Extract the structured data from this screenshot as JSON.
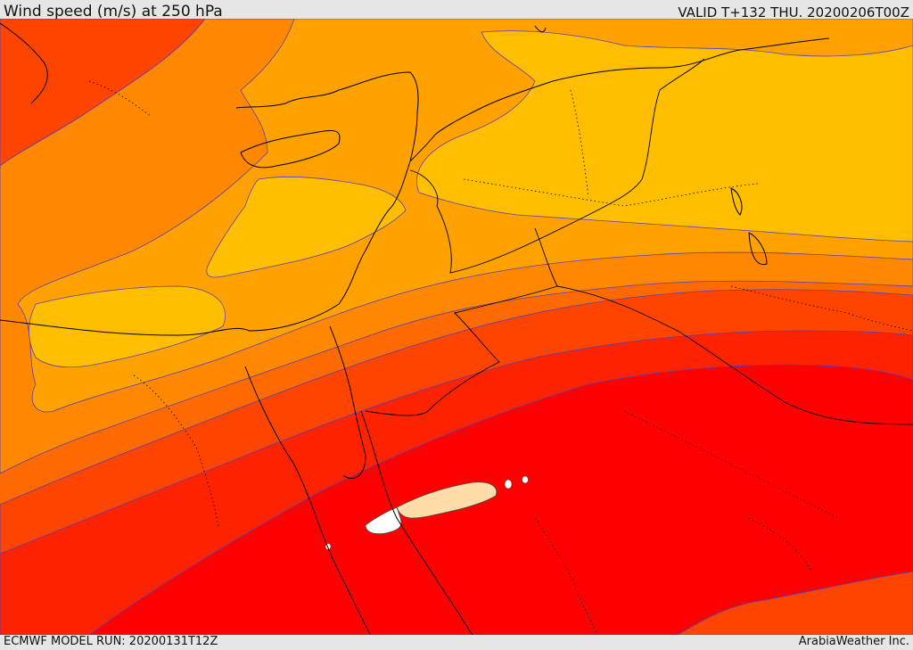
{
  "header": {
    "title": "Wind speed (m/s) at 250 hPa",
    "valid": "VALID T+132 THU. 20200206T00Z"
  },
  "footer": {
    "model_run": "ECMWF MODEL RUN: 20200131T12Z",
    "credit": "ArabiaWeather Inc."
  },
  "colors": {
    "band_darkest": "#ff0000",
    "band_dark": "#ff2200",
    "band_redorange": "#ff4400",
    "band_orange": "#ff6600",
    "band_lightorange": "#ff8800",
    "band_amber": "#ffa200",
    "band_yellow": "#ffbf00",
    "band_pale": "#ffdca8",
    "band_white": "#ffffff",
    "contour_line": "#5a3fb0",
    "coastline": "#000000"
  }
}
